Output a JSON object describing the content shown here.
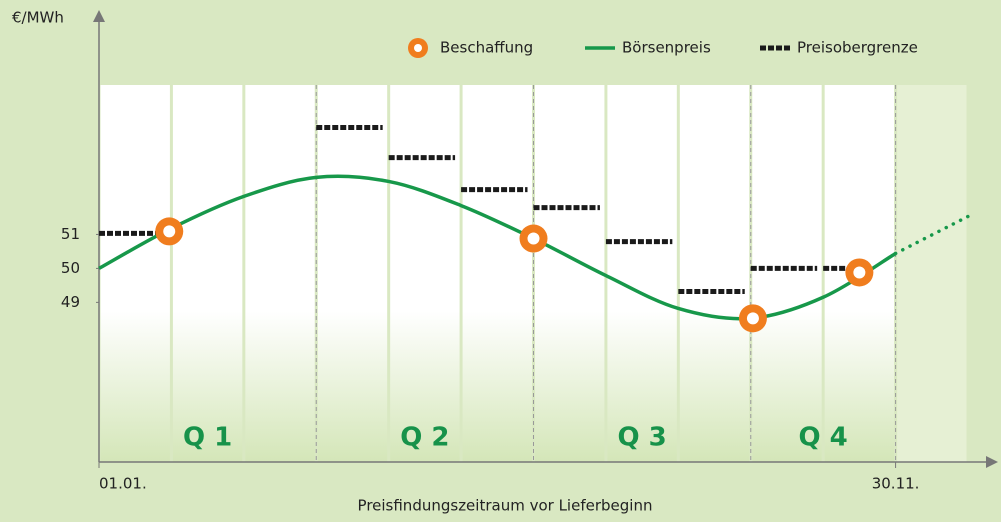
{
  "chart_data": {
    "type": "line",
    "y_label": "€/MWh",
    "x_label": "Preisfindungszeitraum vor Lieferbeginn",
    "xlim": [
      0,
      12
    ],
    "ylim": [
      44.3,
      55.4
    ],
    "xticks": [
      {
        "value": 0,
        "label": "01.01."
      },
      {
        "value": 11,
        "label": "30.11."
      }
    ],
    "yticks": [
      49,
      50,
      51
    ],
    "quarters": [
      "Q 1",
      "Q 2",
      "Q 3",
      "Q 4"
    ],
    "quarter_bounds": [
      0,
      3,
      6,
      9,
      11
    ],
    "forecast_from": 11,
    "series": [
      {
        "name": "Beschaffung",
        "kind": "scatter",
        "color": "#f07d1e",
        "x": [
          0.97,
          6,
          9.03,
          10.5
        ],
        "values": [
          51.09,
          50.88,
          48.53,
          49.88
        ]
      },
      {
        "name": "Börsenpreis",
        "kind": "line",
        "color": "#17984a",
        "x": [
          0,
          1,
          2,
          3,
          4,
          5,
          6,
          7,
          8,
          9,
          10,
          11,
          12
        ],
        "values": [
          50.0,
          51.18,
          52.12,
          52.68,
          52.56,
          51.85,
          50.88,
          49.79,
          48.82,
          48.53,
          49.15,
          50.44,
          51.53
        ]
      },
      {
        "name": "Preisobergrenze",
        "kind": "step",
        "color": "#1a1a1a",
        "x": [
          0,
          1,
          2,
          3,
          4,
          5,
          6,
          7,
          8,
          9,
          10
        ],
        "values": [
          51.03,
          null,
          null,
          54.15,
          53.26,
          52.32,
          51.79,
          50.79,
          49.32,
          50.0,
          50.0
        ]
      }
    ]
  }
}
